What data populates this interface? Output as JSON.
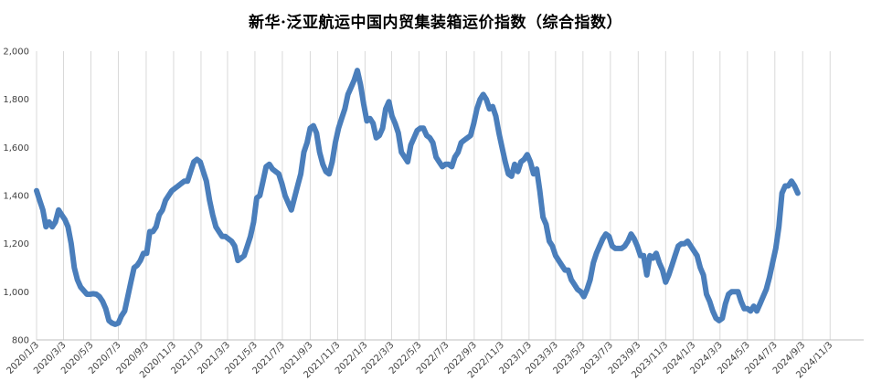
{
  "chart_data": {
    "type": "line",
    "title": "新华·泛亚航运中国内贸集装箱运价指数（综合指数）",
    "xlabel": "",
    "ylabel": "",
    "ylim": [
      800,
      2000
    ],
    "yticks": [
      800,
      1000,
      1200,
      1400,
      1600,
      1800,
      2000
    ],
    "ytick_labels": [
      "800",
      "1,000",
      "1,200",
      "1,400",
      "1,600",
      "1,800",
      "2,000"
    ],
    "xticks": [
      "2020/1/3",
      "2020/3/3",
      "2020/5/3",
      "2020/7/3",
      "2020/9/3",
      "2020/11/3",
      "2021/1/3",
      "2021/3/3",
      "2021/5/3",
      "2021/7/3",
      "2021/9/3",
      "2021/11/3",
      "2022/1/3",
      "2022/3/3",
      "2022/5/3",
      "2022/7/3",
      "2022/9/3",
      "2022/11/3",
      "2023/1/3",
      "2023/3/3",
      "2023/5/3",
      "2023/7/3",
      "2023/9/3",
      "2023/11/3",
      "2024/1/3",
      "2024/3/3",
      "2024/5/3",
      "2024/7/3",
      "2024/9/3",
      "2024/11/3"
    ],
    "grid": "vertical",
    "legend": "none",
    "line_color": "#4a7ebb",
    "series": [
      {
        "name": "",
        "points": [
          [
            "2020-01-03",
            1420
          ],
          [
            "2020-01-10",
            1380
          ],
          [
            "2020-01-17",
            1340
          ],
          [
            "2020-01-24",
            1270
          ],
          [
            "2020-01-31",
            1290
          ],
          [
            "2020-02-07",
            1270
          ],
          [
            "2020-02-14",
            1290
          ],
          [
            "2020-02-21",
            1340
          ],
          [
            "2020-02-28",
            1320
          ],
          [
            "2020-03-06",
            1300
          ],
          [
            "2020-03-13",
            1270
          ],
          [
            "2020-03-20",
            1200
          ],
          [
            "2020-03-27",
            1100
          ],
          [
            "2020-04-03",
            1050
          ],
          [
            "2020-04-10",
            1020
          ],
          [
            "2020-04-17",
            1005
          ],
          [
            "2020-04-24",
            990
          ],
          [
            "2020-05-01",
            990
          ],
          [
            "2020-05-08",
            992
          ],
          [
            "2020-05-15",
            990
          ],
          [
            "2020-05-22",
            980
          ],
          [
            "2020-05-29",
            960
          ],
          [
            "2020-06-05",
            930
          ],
          [
            "2020-06-12",
            880
          ],
          [
            "2020-06-19",
            870
          ],
          [
            "2020-06-26",
            865
          ],
          [
            "2020-07-03",
            870
          ],
          [
            "2020-07-10",
            900
          ],
          [
            "2020-07-17",
            920
          ],
          [
            "2020-07-24",
            980
          ],
          [
            "2020-07-31",
            1040
          ],
          [
            "2020-08-07",
            1100
          ],
          [
            "2020-08-14",
            1110
          ],
          [
            "2020-08-21",
            1130
          ],
          [
            "2020-08-28",
            1160
          ],
          [
            "2020-09-04",
            1160
          ],
          [
            "2020-09-11",
            1250
          ],
          [
            "2020-09-18",
            1250
          ],
          [
            "2020-09-25",
            1270
          ],
          [
            "2020-10-02",
            1320
          ],
          [
            "2020-10-09",
            1340
          ],
          [
            "2020-10-16",
            1380
          ],
          [
            "2020-10-23",
            1400
          ],
          [
            "2020-10-30",
            1420
          ],
          [
            "2020-11-06",
            1430
          ],
          [
            "2020-11-13",
            1440
          ],
          [
            "2020-11-20",
            1450
          ],
          [
            "2020-11-27",
            1460
          ],
          [
            "2020-12-04",
            1460
          ],
          [
            "2020-12-11",
            1500
          ],
          [
            "2020-12-18",
            1540
          ],
          [
            "2020-12-25",
            1550
          ],
          [
            "2021-01-01",
            1540
          ],
          [
            "2021-01-08",
            1500
          ],
          [
            "2021-01-15",
            1460
          ],
          [
            "2021-01-22",
            1380
          ],
          [
            "2021-01-29",
            1320
          ],
          [
            "2021-02-05",
            1270
          ],
          [
            "2021-02-12",
            1250
          ],
          [
            "2021-02-19",
            1230
          ],
          [
            "2021-02-26",
            1230
          ],
          [
            "2021-03-05",
            1220
          ],
          [
            "2021-03-12",
            1210
          ],
          [
            "2021-03-19",
            1190
          ],
          [
            "2021-03-26",
            1130
          ],
          [
            "2021-04-02",
            1140
          ],
          [
            "2021-04-09",
            1150
          ],
          [
            "2021-04-16",
            1190
          ],
          [
            "2021-04-23",
            1230
          ],
          [
            "2021-04-30",
            1290
          ],
          [
            "2021-05-07",
            1390
          ],
          [
            "2021-05-14",
            1400
          ],
          [
            "2021-05-21",
            1460
          ],
          [
            "2021-05-28",
            1520
          ],
          [
            "2021-06-04",
            1530
          ],
          [
            "2021-06-11",
            1510
          ],
          [
            "2021-06-18",
            1500
          ],
          [
            "2021-06-25",
            1490
          ],
          [
            "2021-07-02",
            1450
          ],
          [
            "2021-07-09",
            1400
          ],
          [
            "2021-07-16",
            1370
          ],
          [
            "2021-07-23",
            1340
          ],
          [
            "2021-07-30",
            1390
          ],
          [
            "2021-08-06",
            1440
          ],
          [
            "2021-08-13",
            1490
          ],
          [
            "2021-08-20",
            1580
          ],
          [
            "2021-08-27",
            1620
          ],
          [
            "2021-09-03",
            1680
          ],
          [
            "2021-09-10",
            1690
          ],
          [
            "2021-09-17",
            1660
          ],
          [
            "2021-09-24",
            1580
          ],
          [
            "2021-10-01",
            1530
          ],
          [
            "2021-10-08",
            1500
          ],
          [
            "2021-10-15",
            1490
          ],
          [
            "2021-10-22",
            1540
          ],
          [
            "2021-10-29",
            1620
          ],
          [
            "2021-11-05",
            1680
          ],
          [
            "2021-11-12",
            1720
          ],
          [
            "2021-11-19",
            1760
          ],
          [
            "2021-11-26",
            1820
          ],
          [
            "2021-12-03",
            1850
          ],
          [
            "2021-12-10",
            1880
          ],
          [
            "2021-12-17",
            1920
          ],
          [
            "2021-12-24",
            1860
          ],
          [
            "2021-12-31",
            1780
          ],
          [
            "2022-01-07",
            1710
          ],
          [
            "2022-01-14",
            1720
          ],
          [
            "2022-01-21",
            1700
          ],
          [
            "2022-01-28",
            1640
          ],
          [
            "2022-02-04",
            1650
          ],
          [
            "2022-02-11",
            1680
          ],
          [
            "2022-02-18",
            1760
          ],
          [
            "2022-02-25",
            1790
          ],
          [
            "2022-03-04",
            1730
          ],
          [
            "2022-03-11",
            1700
          ],
          [
            "2022-03-18",
            1660
          ],
          [
            "2022-03-25",
            1580
          ],
          [
            "2022-04-01",
            1560
          ],
          [
            "2022-04-08",
            1540
          ],
          [
            "2022-04-15",
            1610
          ],
          [
            "2022-04-22",
            1640
          ],
          [
            "2022-04-29",
            1670
          ],
          [
            "2022-05-06",
            1680
          ],
          [
            "2022-05-13",
            1680
          ],
          [
            "2022-05-20",
            1650
          ],
          [
            "2022-05-27",
            1640
          ],
          [
            "2022-06-03",
            1620
          ],
          [
            "2022-06-10",
            1560
          ],
          [
            "2022-06-17",
            1540
          ],
          [
            "2022-06-24",
            1520
          ],
          [
            "2022-07-01",
            1530
          ],
          [
            "2022-07-08",
            1530
          ],
          [
            "2022-07-15",
            1520
          ],
          [
            "2022-07-22",
            1560
          ],
          [
            "2022-07-29",
            1580
          ],
          [
            "2022-08-05",
            1620
          ],
          [
            "2022-08-12",
            1630
          ],
          [
            "2022-08-19",
            1640
          ],
          [
            "2022-08-26",
            1650
          ],
          [
            "2022-09-02",
            1700
          ],
          [
            "2022-09-09",
            1760
          ],
          [
            "2022-09-16",
            1800
          ],
          [
            "2022-09-23",
            1820
          ],
          [
            "2022-09-30",
            1800
          ],
          [
            "2022-10-07",
            1760
          ],
          [
            "2022-10-14",
            1770
          ],
          [
            "2022-10-21",
            1730
          ],
          [
            "2022-10-28",
            1660
          ],
          [
            "2022-11-04",
            1600
          ],
          [
            "2022-11-11",
            1540
          ],
          [
            "2022-11-18",
            1490
          ],
          [
            "2022-11-25",
            1480
          ],
          [
            "2022-12-02",
            1530
          ],
          [
            "2022-12-09",
            1500
          ],
          [
            "2022-12-16",
            1540
          ],
          [
            "2022-12-23",
            1550
          ],
          [
            "2022-12-30",
            1570
          ],
          [
            "2023-01-06",
            1540
          ],
          [
            "2023-01-13",
            1490
          ],
          [
            "2023-01-20",
            1510
          ],
          [
            "2023-01-27",
            1420
          ],
          [
            "2023-02-03",
            1310
          ],
          [
            "2023-02-10",
            1280
          ],
          [
            "2023-02-17",
            1210
          ],
          [
            "2023-02-24",
            1190
          ],
          [
            "2023-03-03",
            1150
          ],
          [
            "2023-03-10",
            1130
          ],
          [
            "2023-03-17",
            1110
          ],
          [
            "2023-03-24",
            1090
          ],
          [
            "2023-03-31",
            1090
          ],
          [
            "2023-04-07",
            1050
          ],
          [
            "2023-04-14",
            1030
          ],
          [
            "2023-04-21",
            1010
          ],
          [
            "2023-04-28",
            1000
          ],
          [
            "2023-05-05",
            980
          ],
          [
            "2023-05-12",
            1010
          ],
          [
            "2023-05-19",
            1050
          ],
          [
            "2023-05-26",
            1120
          ],
          [
            "2023-06-02",
            1160
          ],
          [
            "2023-06-09",
            1190
          ],
          [
            "2023-06-16",
            1220
          ],
          [
            "2023-06-23",
            1240
          ],
          [
            "2023-06-30",
            1230
          ],
          [
            "2023-07-07",
            1190
          ],
          [
            "2023-07-14",
            1180
          ],
          [
            "2023-07-21",
            1180
          ],
          [
            "2023-07-28",
            1180
          ],
          [
            "2023-08-04",
            1190
          ],
          [
            "2023-08-11",
            1210
          ],
          [
            "2023-08-18",
            1240
          ],
          [
            "2023-08-25",
            1220
          ],
          [
            "2023-09-01",
            1190
          ],
          [
            "2023-09-08",
            1150
          ],
          [
            "2023-09-15",
            1150
          ],
          [
            "2023-09-22",
            1070
          ],
          [
            "2023-09-29",
            1150
          ],
          [
            "2023-10-06",
            1140
          ],
          [
            "2023-10-13",
            1160
          ],
          [
            "2023-10-20",
            1120
          ],
          [
            "2023-10-27",
            1090
          ],
          [
            "2023-11-03",
            1040
          ],
          [
            "2023-11-10",
            1070
          ],
          [
            "2023-11-17",
            1110
          ],
          [
            "2023-11-24",
            1150
          ],
          [
            "2023-12-01",
            1190
          ],
          [
            "2023-12-08",
            1200
          ],
          [
            "2023-12-15",
            1200
          ],
          [
            "2023-12-22",
            1210
          ],
          [
            "2023-12-29",
            1190
          ],
          [
            "2024-01-05",
            1170
          ],
          [
            "2024-01-12",
            1150
          ],
          [
            "2024-01-19",
            1100
          ],
          [
            "2024-01-26",
            1070
          ],
          [
            "2024-02-02",
            990
          ],
          [
            "2024-02-09",
            960
          ],
          [
            "2024-02-16",
            920
          ],
          [
            "2024-02-23",
            890
          ],
          [
            "2024-03-01",
            880
          ],
          [
            "2024-03-08",
            890
          ],
          [
            "2024-03-15",
            950
          ],
          [
            "2024-03-22",
            990
          ],
          [
            "2024-03-29",
            1000
          ],
          [
            "2024-04-05",
            1000
          ],
          [
            "2024-04-12",
            1000
          ],
          [
            "2024-04-19",
            960
          ],
          [
            "2024-04-26",
            930
          ],
          [
            "2024-05-03",
            930
          ],
          [
            "2024-05-10",
            920
          ],
          [
            "2024-05-17",
            940
          ],
          [
            "2024-05-24",
            920
          ],
          [
            "2024-05-31",
            950
          ],
          [
            "2024-06-07",
            980
          ],
          [
            "2024-06-14",
            1010
          ],
          [
            "2024-06-21",
            1060
          ],
          [
            "2024-06-28",
            1120
          ],
          [
            "2024-07-05",
            1180
          ],
          [
            "2024-07-12",
            1270
          ],
          [
            "2024-07-19",
            1410
          ],
          [
            "2024-07-26",
            1440
          ],
          [
            "2024-08-02",
            1440
          ],
          [
            "2024-08-09",
            1460
          ],
          [
            "2024-08-16",
            1440
          ],
          [
            "2024-08-23",
            1410
          ]
        ]
      }
    ]
  }
}
